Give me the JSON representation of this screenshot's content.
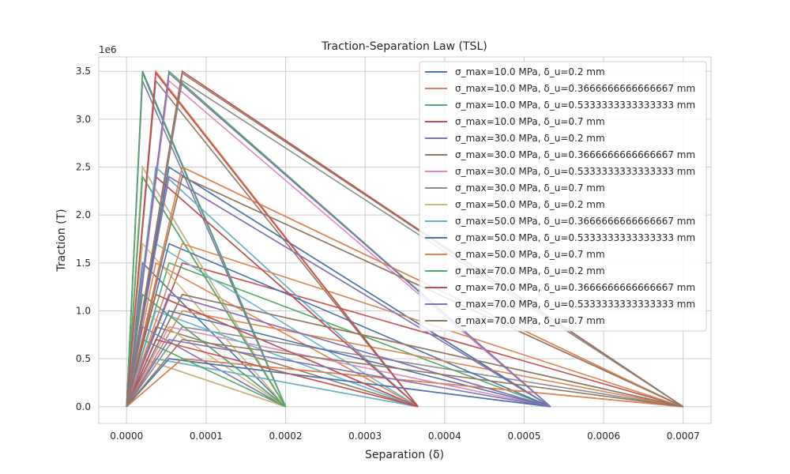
{
  "chart_data": {
    "type": "line",
    "title": "Traction-Separation Law (TSL)",
    "xlabel": "Separation (δ)",
    "ylabel": "Traction (T)",
    "y_offset_label": "1e6",
    "xlim": [
      -3.5e-05,
      0.000735
    ],
    "ylim": [
      -175000,
      3650000
    ],
    "x_ticks": [
      0,
      0.0001,
      0.0002,
      0.0003,
      0.0004,
      0.0005,
      0.0006,
      0.0007
    ],
    "x_tick_labels": [
      "0.0000",
      "0.0001",
      "0.0002",
      "0.0003",
      "0.0004",
      "0.0005",
      "0.0006",
      "0.0007"
    ],
    "y_ticks": [
      0,
      500000,
      1000000,
      1500000,
      2000000,
      2500000,
      3000000,
      3500000
    ],
    "y_tick_labels": [
      "0.0",
      "0.5",
      "1.0",
      "1.5",
      "2.0",
      "2.5",
      "3.0",
      "3.5"
    ],
    "grid": true,
    "legend_position": "top-right",
    "series": [
      {
        "name": "σ_max=10.0 MPa, δ_u=0.2 mm",
        "color": "#4c72b0",
        "delta_max": 0.0002,
        "peaks": [
          [
            2e-05,
            500000
          ],
          [
            2e-05,
            1500000
          ],
          [
            2e-05,
            2500000
          ],
          [
            2e-05,
            3500000
          ]
        ]
      },
      {
        "name": "σ_max=10.0 MPa, δ_u=0.3666666666666667 mm",
        "color": "#dd8452",
        "delta_max": 0.0003667,
        "peaks": [
          [
            3.67e-05,
            500000
          ],
          [
            3.67e-05,
            1500000
          ],
          [
            3.67e-05,
            2500000
          ],
          [
            3.67e-05,
            3500000
          ]
        ]
      },
      {
        "name": "σ_max=10.0 MPa, δ_u=0.5333333333333333 mm",
        "color": "#55a868",
        "delta_max": 0.0005333,
        "peaks": [
          [
            5.33e-05,
            500000
          ],
          [
            5.33e-05,
            1500000
          ],
          [
            5.33e-05,
            2500000
          ],
          [
            5.33e-05,
            3500000
          ]
        ]
      },
      {
        "name": "σ_max=10.0 MPa, δ_u=0.7 mm",
        "color": "#c44e52",
        "delta_max": 0.0007,
        "peaks": [
          [
            7e-05,
            500000
          ],
          [
            7e-05,
            1500000
          ],
          [
            7e-05,
            2500000
          ],
          [
            7e-05,
            3500000
          ]
        ]
      },
      {
        "name": "σ_max=30.0 MPa, δ_u=0.2 mm",
        "color": "#8172b3",
        "delta_max": 0.0002,
        "peaks": [
          [
            2e-05,
            833000
          ],
          [
            2e-05,
            1170000
          ],
          [
            2e-05,
            2400000
          ],
          [
            2e-05,
            3400000
          ]
        ]
      },
      {
        "name": "σ_max=30.0 MPa, δ_u=0.3666666666666667 mm",
        "color": "#937860",
        "delta_max": 0.0003667,
        "peaks": [
          [
            3.67e-05,
            833000
          ],
          [
            3.67e-05,
            1170000
          ],
          [
            3.67e-05,
            2400000
          ],
          [
            3.67e-05,
            3400000
          ]
        ]
      },
      {
        "name": "σ_max=30.0 MPa, δ_u=0.5333333333333333 mm",
        "color": "#da8bc3",
        "delta_max": 0.0005333,
        "peaks": [
          [
            5.33e-05,
            833000
          ],
          [
            5.33e-05,
            1170000
          ],
          [
            5.33e-05,
            2400000
          ],
          [
            5.33e-05,
            3400000
          ]
        ]
      },
      {
        "name": "σ_max=30.0 MPa, δ_u=0.7 mm",
        "color": "#8c8c8c",
        "delta_max": 0.0007,
        "peaks": [
          [
            7e-05,
            833000
          ],
          [
            7e-05,
            1170000
          ],
          [
            7e-05,
            2400000
          ],
          [
            7e-05,
            3400000
          ]
        ]
      },
      {
        "name": "σ_max=50.0 MPa, δ_u=0.2 mm",
        "color": "#ccb974",
        "delta_max": 0.0002,
        "peaks": [
          [
            2e-05,
            500000
          ],
          [
            2e-05,
            1000000
          ],
          [
            2e-05,
            1700000
          ],
          [
            2e-05,
            2500000
          ]
        ]
      },
      {
        "name": "σ_max=50.0 MPa, δ_u=0.3666666666666667 mm",
        "color": "#64b5cd",
        "delta_max": 0.0003667,
        "peaks": [
          [
            3.67e-05,
            500000
          ],
          [
            3.67e-05,
            1000000
          ],
          [
            3.67e-05,
            1700000
          ],
          [
            3.67e-05,
            2500000
          ]
        ]
      },
      {
        "name": "σ_max=50.0 MPa, δ_u=0.5333333333333333 mm",
        "color": "#4c72b0",
        "delta_max": 0.0005333,
        "peaks": [
          [
            5.33e-05,
            500000
          ],
          [
            5.33e-05,
            1000000
          ],
          [
            5.33e-05,
            1700000
          ],
          [
            5.33e-05,
            2500000
          ]
        ]
      },
      {
        "name": "σ_max=50.0 MPa, δ_u=0.7 mm",
        "color": "#dd8452",
        "delta_max": 0.0007,
        "peaks": [
          [
            7e-05,
            500000
          ],
          [
            7e-05,
            1000000
          ],
          [
            7e-05,
            1700000
          ],
          [
            7e-05,
            2500000
          ]
        ]
      },
      {
        "name": "σ_max=70.0 MPa, δ_u=0.2 mm",
        "color": "#55a868",
        "delta_max": 0.0002,
        "peaks": [
          [
            2e-05,
            700000
          ],
          [
            2e-05,
            1170000
          ],
          [
            2e-05,
            2400000
          ],
          [
            2e-05,
            3480000
          ]
        ]
      },
      {
        "name": "σ_max=70.0 MPa, δ_u=0.3666666666666667 mm",
        "color": "#c44e52",
        "delta_max": 0.0003667,
        "peaks": [
          [
            3.67e-05,
            700000
          ],
          [
            3.67e-05,
            1170000
          ],
          [
            3.67e-05,
            2400000
          ],
          [
            3.67e-05,
            3480000
          ]
        ]
      },
      {
        "name": "σ_max=70.0 MPa, δ_u=0.5333333333333333 mm",
        "color": "#8172b3",
        "delta_max": 0.0005333,
        "peaks": [
          [
            5.33e-05,
            700000
          ],
          [
            5.33e-05,
            1170000
          ],
          [
            5.33e-05,
            2400000
          ],
          [
            5.33e-05,
            3480000
          ]
        ]
      },
      {
        "name": "σ_max=70.0 MPa, δ_u=0.7 mm",
        "color": "#937860",
        "delta_max": 0.0007,
        "peaks": [
          [
            7e-05,
            700000
          ],
          [
            7e-05,
            1170000
          ],
          [
            7e-05,
            2400000
          ],
          [
            7e-05,
            3480000
          ]
        ]
      }
    ]
  }
}
